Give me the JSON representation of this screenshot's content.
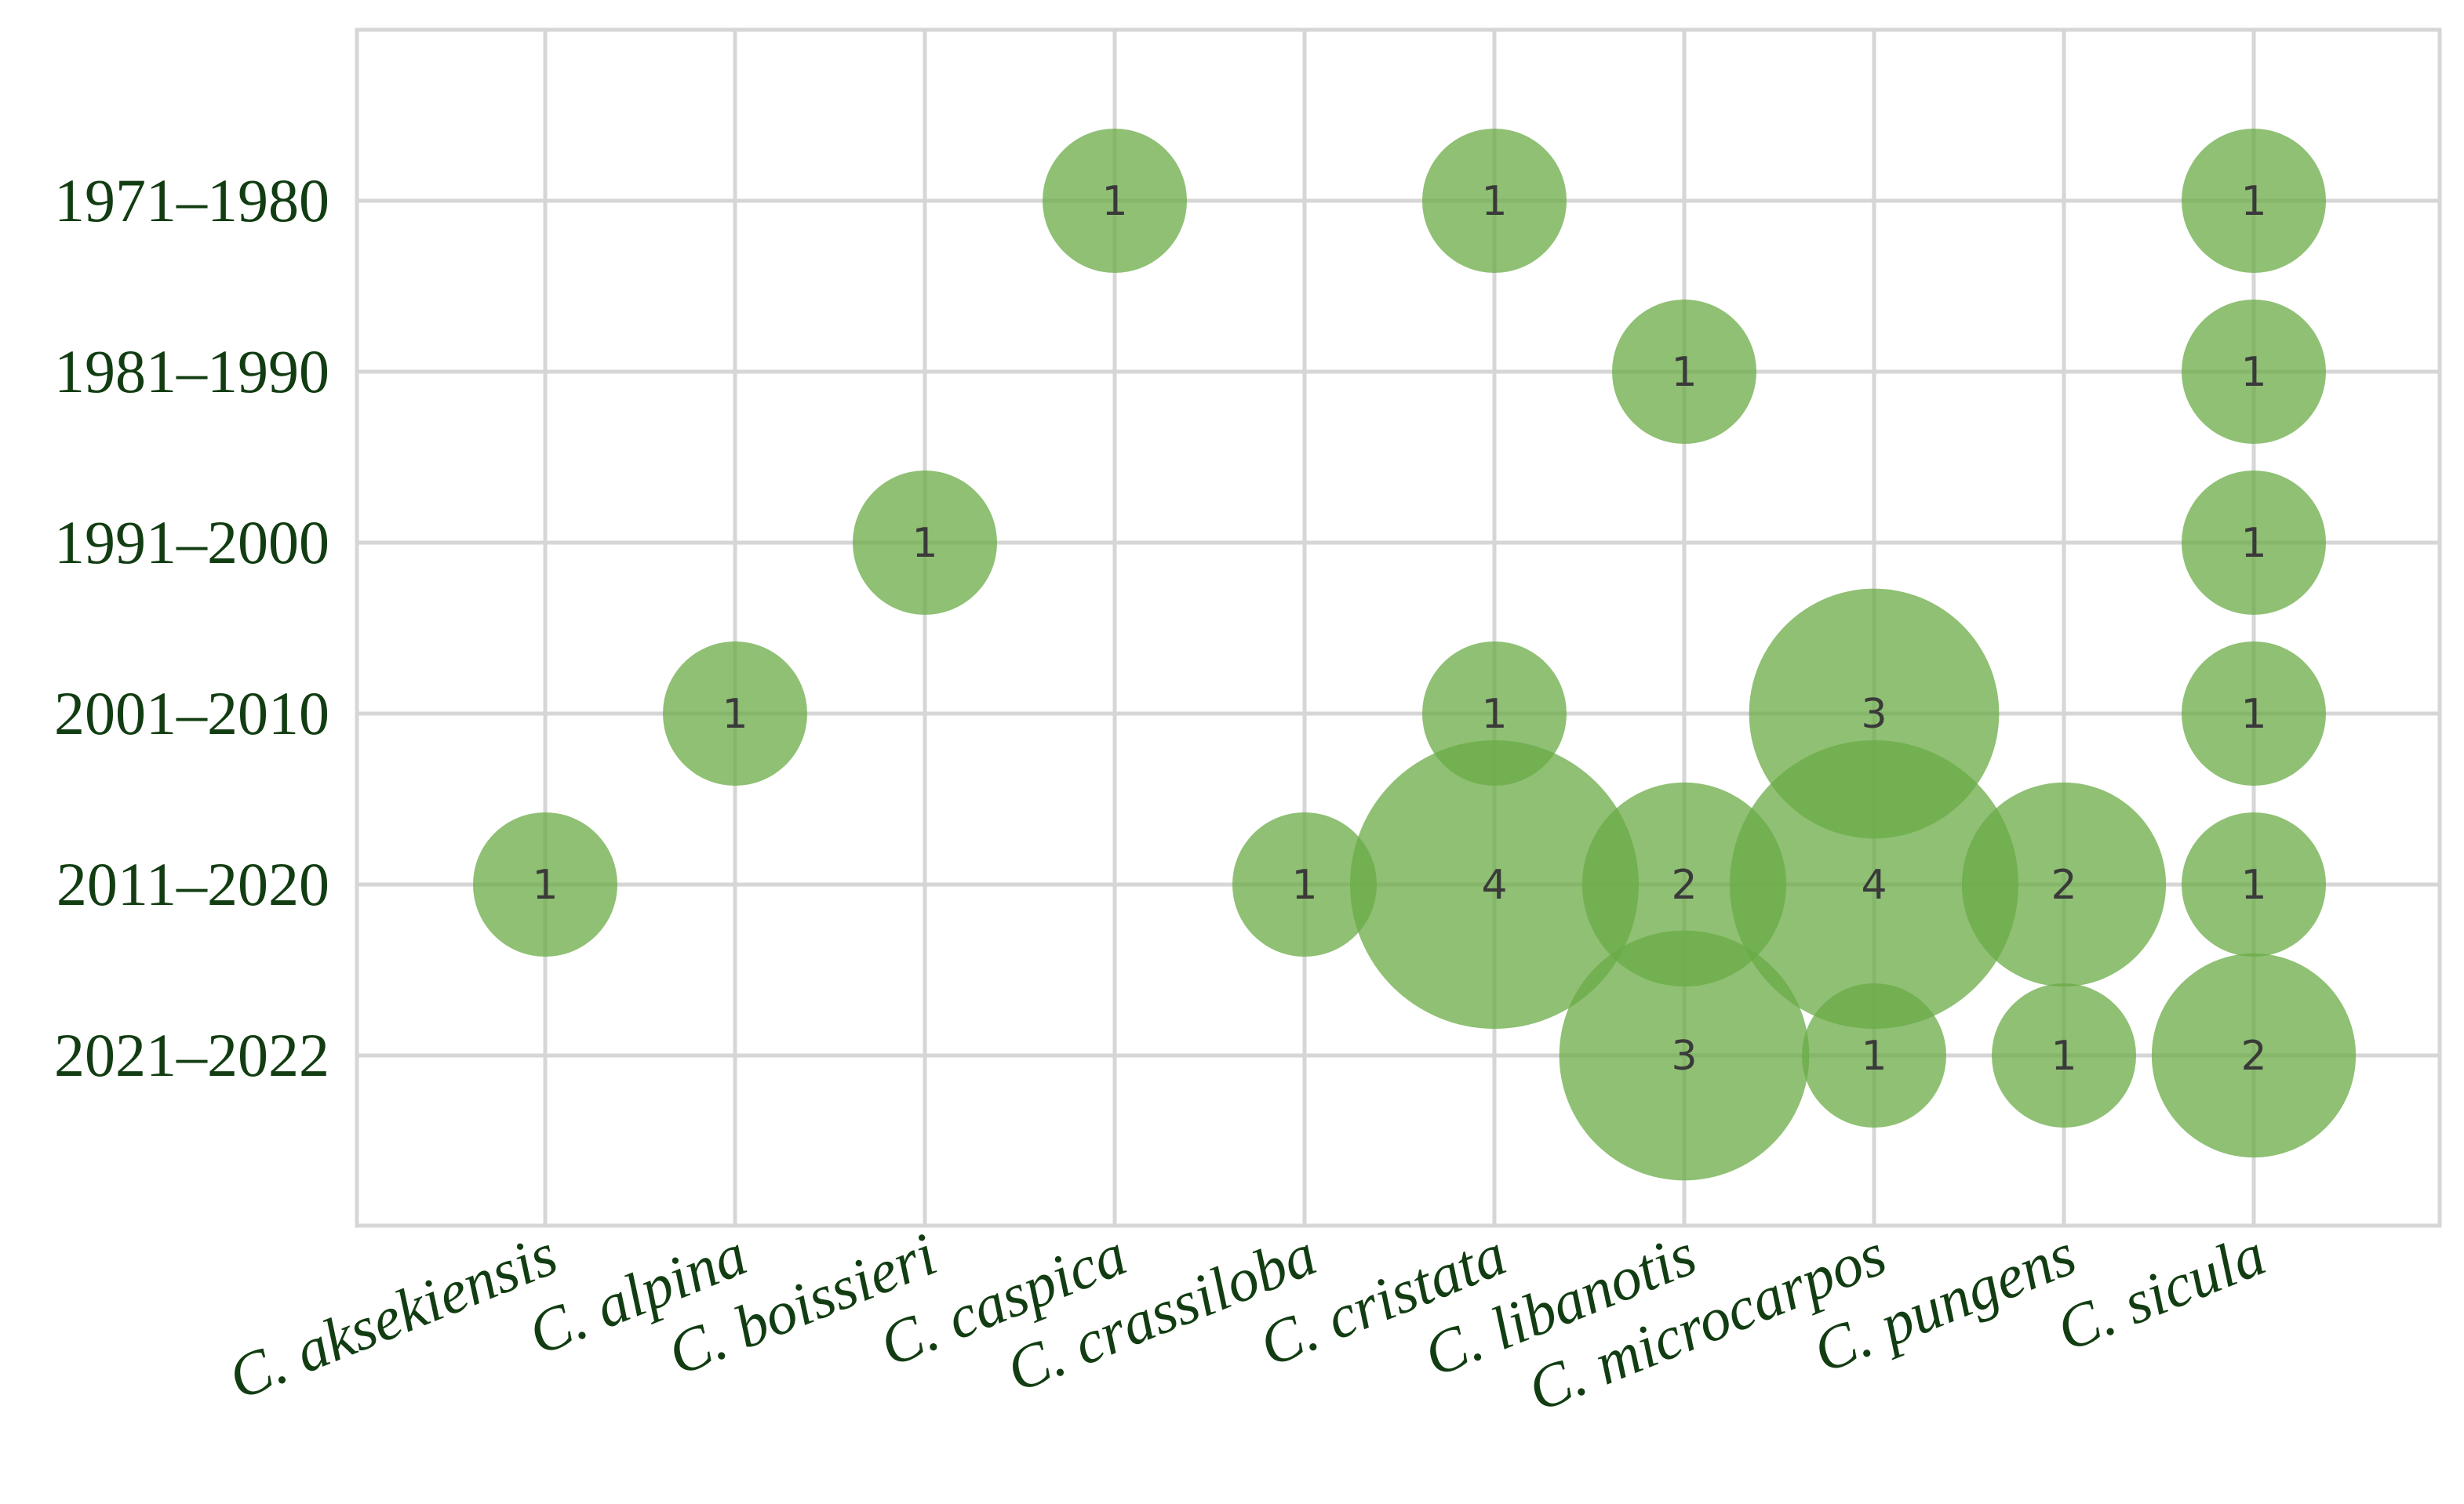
{
  "chart_data": {
    "type": "bubble",
    "title": "",
    "xlabel": "",
    "ylabel": "",
    "categories_x": [
      "C. aksekiensis",
      "C. alpina",
      "C. boissieri",
      "C. caspica",
      "C. crassiloba",
      "C. cristata",
      "C. libanotis",
      "C. microcarpos",
      "C. pungens",
      "C. sicula"
    ],
    "categories_y": [
      "1971–1980",
      "1981–1990",
      "1991–2000",
      "2001–2010",
      "2011–2020",
      "2021–2022"
    ],
    "points": [
      {
        "x": "C. caspica",
        "y": "1971–1980",
        "value": 1
      },
      {
        "x": "C. cristata",
        "y": "1971–1980",
        "value": 1
      },
      {
        "x": "C. sicula",
        "y": "1971–1980",
        "value": 1
      },
      {
        "x": "C. libanotis",
        "y": "1981–1990",
        "value": 1
      },
      {
        "x": "C. sicula",
        "y": "1981–1990",
        "value": 1
      },
      {
        "x": "C. boissieri",
        "y": "1991–2000",
        "value": 1
      },
      {
        "x": "C. sicula",
        "y": "1991–2000",
        "value": 1
      },
      {
        "x": "C. alpina",
        "y": "2001–2010",
        "value": 1
      },
      {
        "x": "C. cristata",
        "y": "2001–2010",
        "value": 1
      },
      {
        "x": "C. microcarpos",
        "y": "2001–2010",
        "value": 3
      },
      {
        "x": "C. sicula",
        "y": "2001–2010",
        "value": 1
      },
      {
        "x": "C. aksekiensis",
        "y": "2011–2020",
        "value": 1
      },
      {
        "x": "C. crassiloba",
        "y": "2011–2020",
        "value": 1
      },
      {
        "x": "C. cristata",
        "y": "2011–2020",
        "value": 4
      },
      {
        "x": "C. libanotis",
        "y": "2011–2020",
        "value": 2
      },
      {
        "x": "C. microcarpos",
        "y": "2011–2020",
        "value": 4
      },
      {
        "x": "C. pungens",
        "y": "2011–2020",
        "value": 2
      },
      {
        "x": "C. sicula",
        "y": "2011–2020",
        "value": 1
      },
      {
        "x": "C. libanotis",
        "y": "2021–2022",
        "value": 3
      },
      {
        "x": "C. microcarpos",
        "y": "2021–2022",
        "value": 1
      },
      {
        "x": "C. pungens",
        "y": "2021–2022",
        "value": 1
      },
      {
        "x": "C. sicula",
        "y": "2021–2022",
        "value": 2
      }
    ],
    "grid": true,
    "legend": "none",
    "colors": {
      "bubble": "#6aab45",
      "tick_text": "#123d12",
      "grid": "#d6d6d6",
      "bubble_label": "#3a3a3a"
    }
  }
}
